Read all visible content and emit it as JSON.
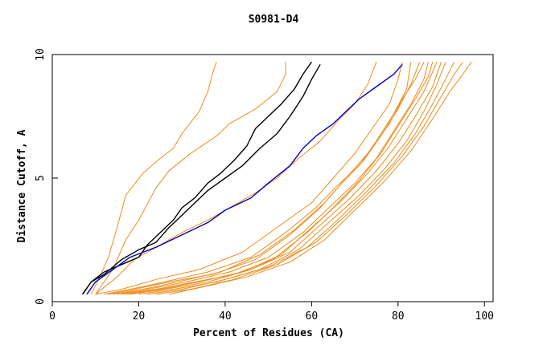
{
  "chart_data": {
    "type": "line",
    "title": "S0981-D4",
    "xlabel": "Percent of Residues (CA)",
    "ylabel": "Distance Cutoff, A",
    "xlim": [
      0,
      102
    ],
    "ylim": [
      0,
      10
    ],
    "xticks": [
      0,
      20,
      40,
      60,
      80,
      100
    ],
    "yticks": [
      0,
      5,
      10
    ],
    "grid": false,
    "legend": "none",
    "colors": {
      "orange": "#ee8c1a",
      "black": "#000000",
      "blue": "#0000cc"
    },
    "series": [
      {
        "name": "orange-1",
        "color": "orange",
        "points": [
          [
            9,
            0.3
          ],
          [
            11,
            1.0
          ],
          [
            13,
            1.8
          ],
          [
            15,
            3.0
          ],
          [
            17,
            4.3
          ],
          [
            21,
            5.2
          ],
          [
            25,
            5.8
          ],
          [
            28,
            6.2
          ],
          [
            30,
            6.8
          ],
          [
            34,
            7.7
          ],
          [
            36,
            8.5
          ],
          [
            37,
            9.2
          ],
          [
            38,
            9.7
          ]
        ]
      },
      {
        "name": "orange-2",
        "color": "orange",
        "points": [
          [
            10,
            0.3
          ],
          [
            14,
            1.3
          ],
          [
            17,
            2.5
          ],
          [
            20,
            3.3
          ],
          [
            24,
            4.6
          ],
          [
            27,
            5.3
          ],
          [
            32,
            6.0
          ],
          [
            38,
            6.7
          ],
          [
            41,
            7.2
          ],
          [
            47,
            7.8
          ],
          [
            52,
            8.5
          ],
          [
            54,
            9.2
          ],
          [
            54,
            9.7
          ]
        ]
      },
      {
        "name": "orange-3",
        "color": "orange",
        "points": [
          [
            10,
            0.3
          ],
          [
            15,
            1.0
          ],
          [
            19,
            1.7
          ],
          [
            24,
            2.2
          ],
          [
            30,
            2.8
          ],
          [
            36,
            3.3
          ],
          [
            41,
            3.8
          ],
          [
            47,
            4.4
          ],
          [
            52,
            5.0
          ],
          [
            57,
            5.8
          ],
          [
            62,
            6.5
          ],
          [
            66,
            7.3
          ],
          [
            70,
            8.0
          ],
          [
            73,
            8.8
          ],
          [
            75,
            9.7
          ]
        ]
      },
      {
        "name": "orange-4",
        "color": "orange",
        "points": [
          [
            10,
            0.3
          ],
          [
            16,
            0.5
          ],
          [
            24,
            0.9
          ],
          [
            34,
            1.3
          ],
          [
            44,
            2.0
          ],
          [
            52,
            3.0
          ],
          [
            60,
            4.0
          ],
          [
            65,
            5.0
          ],
          [
            70,
            6.0
          ],
          [
            74,
            7.0
          ],
          [
            78,
            8.0
          ],
          [
            80,
            9.0
          ],
          [
            81,
            9.7
          ]
        ]
      },
      {
        "name": "orange-5",
        "color": "orange",
        "points": [
          [
            12,
            0.3
          ],
          [
            18,
            0.5
          ],
          [
            26,
            0.8
          ],
          [
            36,
            1.2
          ],
          [
            46,
            1.8
          ],
          [
            54,
            2.8
          ],
          [
            61,
            3.8
          ],
          [
            66,
            4.7
          ],
          [
            71,
            5.5
          ],
          [
            75,
            6.5
          ],
          [
            79,
            7.6
          ],
          [
            82,
            8.6
          ],
          [
            83,
            9.7
          ]
        ]
      },
      {
        "name": "orange-6",
        "color": "orange",
        "points": [
          [
            13,
            0.3
          ],
          [
            19,
            0.5
          ],
          [
            27,
            0.8
          ],
          [
            37,
            1.1
          ],
          [
            47,
            1.7
          ],
          [
            55,
            2.7
          ],
          [
            62,
            3.8
          ],
          [
            67,
            4.8
          ],
          [
            72,
            5.7
          ],
          [
            76,
            6.7
          ],
          [
            80,
            7.8
          ],
          [
            83,
            8.8
          ],
          [
            85,
            9.7
          ]
        ]
      },
      {
        "name": "orange-7",
        "color": "orange",
        "points": [
          [
            14,
            0.3
          ],
          [
            21,
            0.5
          ],
          [
            29,
            0.8
          ],
          [
            39,
            1.2
          ],
          [
            48,
            1.9
          ],
          [
            56,
            2.9
          ],
          [
            63,
            4.0
          ],
          [
            68,
            5.0
          ],
          [
            73,
            6.0
          ],
          [
            78,
            7.2
          ],
          [
            81,
            8.2
          ],
          [
            84,
            9.0
          ],
          [
            86,
            9.7
          ]
        ]
      },
      {
        "name": "orange-8",
        "color": "orange",
        "points": [
          [
            15,
            0.3
          ],
          [
            22,
            0.5
          ],
          [
            31,
            0.8
          ],
          [
            41,
            1.2
          ],
          [
            50,
            1.8
          ],
          [
            58,
            2.8
          ],
          [
            64,
            3.8
          ],
          [
            70,
            4.8
          ],
          [
            75,
            5.8
          ],
          [
            79,
            6.9
          ],
          [
            83,
            8.0
          ],
          [
            86,
            9.0
          ],
          [
            87,
            9.7
          ]
        ]
      },
      {
        "name": "orange-9",
        "color": "orange",
        "points": [
          [
            16,
            0.3
          ],
          [
            24,
            0.5
          ],
          [
            33,
            0.8
          ],
          [
            42,
            1.1
          ],
          [
            51,
            1.7
          ],
          [
            59,
            2.8
          ],
          [
            65,
            3.8
          ],
          [
            71,
            4.9
          ],
          [
            76,
            6.0
          ],
          [
            80,
            7.1
          ],
          [
            84,
            8.2
          ],
          [
            87,
            9.1
          ],
          [
            88,
            9.7
          ]
        ]
      },
      {
        "name": "orange-10",
        "color": "orange",
        "points": [
          [
            17,
            0.3
          ],
          [
            25,
            0.5
          ],
          [
            34,
            0.8
          ],
          [
            44,
            1.2
          ],
          [
            53,
            1.9
          ],
          [
            60,
            3.0
          ],
          [
            67,
            4.1
          ],
          [
            73,
            5.2
          ],
          [
            78,
            6.3
          ],
          [
            82,
            7.4
          ],
          [
            86,
            8.5
          ],
          [
            88,
            9.3
          ],
          [
            89,
            9.7
          ]
        ]
      },
      {
        "name": "orange-11",
        "color": "orange",
        "points": [
          [
            18,
            0.3
          ],
          [
            26,
            0.5
          ],
          [
            36,
            0.8
          ],
          [
            46,
            1.3
          ],
          [
            55,
            2.0
          ],
          [
            62,
            3.1
          ],
          [
            69,
            4.2
          ],
          [
            75,
            5.3
          ],
          [
            80,
            6.4
          ],
          [
            84,
            7.5
          ],
          [
            88,
            8.7
          ],
          [
            90,
            9.7
          ]
        ]
      },
      {
        "name": "orange-12",
        "color": "orange",
        "points": [
          [
            20,
            0.3
          ],
          [
            28,
            0.5
          ],
          [
            38,
            0.8
          ],
          [
            48,
            1.3
          ],
          [
            57,
            2.1
          ],
          [
            64,
            3.2
          ],
          [
            71,
            4.3
          ],
          [
            77,
            5.4
          ],
          [
            82,
            6.5
          ],
          [
            86,
            7.7
          ],
          [
            89,
            8.8
          ],
          [
            91,
            9.7
          ]
        ]
      },
      {
        "name": "orange-13",
        "color": "orange",
        "points": [
          [
            22,
            0.3
          ],
          [
            30,
            0.5
          ],
          [
            40,
            0.9
          ],
          [
            50,
            1.4
          ],
          [
            59,
            2.2
          ],
          [
            66,
            3.3
          ],
          [
            73,
            4.5
          ],
          [
            79,
            5.6
          ],
          [
            84,
            6.8
          ],
          [
            88,
            8.0
          ],
          [
            91,
            9.0
          ],
          [
            93,
            9.7
          ]
        ]
      },
      {
        "name": "orange-14",
        "color": "orange",
        "points": [
          [
            24,
            0.3
          ],
          [
            32,
            0.5
          ],
          [
            42,
            0.9
          ],
          [
            52,
            1.5
          ],
          [
            61,
            2.4
          ],
          [
            68,
            3.5
          ],
          [
            75,
            4.7
          ],
          [
            81,
            5.9
          ],
          [
            86,
            7.1
          ],
          [
            90,
            8.3
          ],
          [
            93,
            9.2
          ],
          [
            95,
            9.7
          ]
        ]
      },
      {
        "name": "orange-15",
        "color": "orange",
        "points": [
          [
            27,
            0.3
          ],
          [
            35,
            0.6
          ],
          [
            45,
            1.0
          ],
          [
            55,
            1.6
          ],
          [
            63,
            2.5
          ],
          [
            70,
            3.7
          ],
          [
            77,
            4.9
          ],
          [
            83,
            6.1
          ],
          [
            88,
            7.4
          ],
          [
            92,
            8.5
          ],
          [
            95,
            9.2
          ],
          [
            97,
            9.7
          ]
        ]
      },
      {
        "name": "black-1",
        "color": "black",
        "points": [
          [
            7,
            0.3
          ],
          [
            9,
            0.8
          ],
          [
            12,
            1.2
          ],
          [
            16,
            1.5
          ],
          [
            20,
            1.8
          ],
          [
            22,
            2.3
          ],
          [
            25,
            2.8
          ],
          [
            28,
            3.3
          ],
          [
            30,
            3.8
          ],
          [
            33,
            4.2
          ],
          [
            36,
            4.8
          ],
          [
            39,
            5.2
          ],
          [
            42,
            5.7
          ],
          [
            45,
            6.3
          ],
          [
            47,
            7.0
          ],
          [
            50,
            7.5
          ],
          [
            53,
            8.0
          ],
          [
            56,
            8.6
          ],
          [
            58,
            9.2
          ],
          [
            60,
            9.7
          ]
        ]
      },
      {
        "name": "black-2",
        "color": "black",
        "points": [
          [
            7,
            0.3
          ],
          [
            9,
            0.8
          ],
          [
            12,
            1.1
          ],
          [
            16,
            1.7
          ],
          [
            20,
            2.1
          ],
          [
            24,
            2.4
          ],
          [
            27,
            3.0
          ],
          [
            30,
            3.5
          ],
          [
            33,
            4.0
          ],
          [
            36,
            4.5
          ],
          [
            40,
            5.0
          ],
          [
            44,
            5.5
          ],
          [
            48,
            6.2
          ],
          [
            52,
            6.8
          ],
          [
            55,
            7.5
          ],
          [
            58,
            8.3
          ],
          [
            60,
            9.0
          ],
          [
            62,
            9.6
          ]
        ]
      },
      {
        "name": "blue",
        "color": "blue",
        "points": [
          [
            8,
            0.3
          ],
          [
            10,
            0.8
          ],
          [
            14,
            1.3
          ],
          [
            18,
            1.8
          ],
          [
            24,
            2.2
          ],
          [
            30,
            2.7
          ],
          [
            36,
            3.2
          ],
          [
            40,
            3.7
          ],
          [
            46,
            4.2
          ],
          [
            50,
            4.8
          ],
          [
            55,
            5.5
          ],
          [
            58,
            6.2
          ],
          [
            61,
            6.7
          ],
          [
            65,
            7.2
          ],
          [
            68,
            7.7
          ],
          [
            71,
            8.2
          ],
          [
            75,
            8.7
          ],
          [
            79,
            9.2
          ],
          [
            81,
            9.6
          ]
        ]
      }
    ]
  }
}
